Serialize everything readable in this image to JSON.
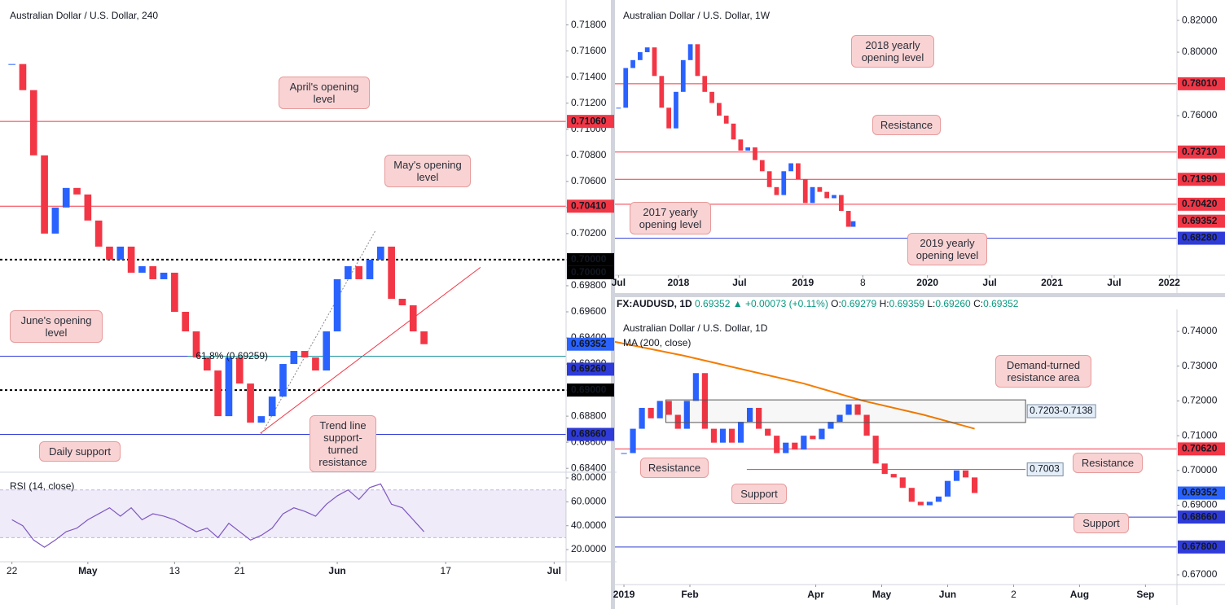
{
  "chart_data": [
    {
      "type": "candlestick",
      "title": "Australian Dollar / U.S. Dollar, 240",
      "x": [
        0,
        1,
        2,
        3,
        4,
        5,
        6,
        7,
        8,
        9,
        10,
        11,
        12,
        13,
        14,
        15,
        16,
        17,
        18,
        19,
        20,
        21,
        22,
        23,
        24,
        25,
        26,
        27,
        28,
        29,
        30,
        31,
        32,
        33,
        34,
        35,
        36,
        37,
        38
      ],
      "close": [
        0.715,
        0.713,
        0.708,
        0.702,
        0.704,
        0.7055,
        0.705,
        0.703,
        0.701,
        0.7,
        0.701,
        0.699,
        0.6995,
        0.6985,
        0.699,
        0.696,
        0.6945,
        0.6925,
        0.6915,
        0.688,
        0.6925,
        0.6905,
        0.6875,
        0.688,
        0.6895,
        0.692,
        0.693,
        0.6925,
        0.6915,
        0.6945,
        0.6985,
        0.6995,
        0.6985,
        0.7,
        0.701,
        0.697,
        0.6965,
        0.6945,
        0.69352
      ],
      "up_color": "#2962ff",
      "down_color": "#f23645",
      "xlim": [
        -1.1,
        51.1
      ],
      "ylim": [
        0.6837,
        0.7196
      ],
      "xticks": [
        {
          "value": 0,
          "label": "22"
        },
        {
          "value": 7,
          "label": "May"
        },
        {
          "value": 15,
          "label": "13"
        },
        {
          "value": 21,
          "label": "21"
        },
        {
          "value": 30,
          "label": "Jun"
        },
        {
          "value": 40,
          "label": "17"
        },
        {
          "value": 50,
          "label": "Jul"
        }
      ],
      "yticks": [
        {
          "value": 0.684,
          "label": "0.68400"
        },
        {
          "value": 0.686,
          "label": "0.68600"
        },
        {
          "value": 0.688,
          "label": "0.68800"
        },
        {
          "value": 0.69,
          "label": "0.69000"
        },
        {
          "value": 0.692,
          "label": "0.69200"
        },
        {
          "value": 0.694,
          "label": "0.69400"
        },
        {
          "value": 0.696,
          "label": "0.69600"
        },
        {
          "value": 0.698,
          "label": "0.69800"
        },
        {
          "value": 0.7,
          "label": "0.70000"
        },
        {
          "value": 0.702,
          "label": "0.70200"
        },
        {
          "value": 0.704,
          "label": "0.70400"
        },
        {
          "value": 0.706,
          "label": "0.70600"
        },
        {
          "value": 0.708,
          "label": "0.70800"
        },
        {
          "value": 0.71,
          "label": "0.71000"
        },
        {
          "value": 0.712,
          "label": "0.71200"
        },
        {
          "value": 0.714,
          "label": "0.71400"
        },
        {
          "value": 0.716,
          "label": "0.71600"
        },
        {
          "value": 0.718,
          "label": "0.71800"
        }
      ],
      "levels": [
        {
          "value": 0.7106,
          "label": "0.71060",
          "color": "#f23645",
          "style": "solid"
        },
        {
          "value": 0.7041,
          "label": "0.70410",
          "color": "#f23645",
          "style": "solid"
        },
        {
          "value": 0.7,
          "label": "0.70000",
          "color": "#000000",
          "style": "dotted"
        },
        {
          "value": 0.7,
          "label": "0.70000",
          "color": "#000000",
          "style": "none"
        },
        {
          "value": 0.69352,
          "label": "0.69352",
          "color": "#2962ff",
          "style": "none"
        },
        {
          "value": 0.6926,
          "label": "0.69260",
          "color": "#2f3bd8",
          "style": "solid"
        },
        {
          "value": 0.69,
          "label": "0.69000",
          "color": "#000000",
          "style": "dotted"
        },
        {
          "value": 0.6866,
          "label": "0.68660",
          "color": "#2f3bd8",
          "style": "solid"
        }
      ],
      "lines": [
        {
          "x": [
            22.9,
            43.2
          ],
          "y": [
            0.68668,
            0.69941
          ],
          "color": "#f23645",
          "style": "solid"
        },
        {
          "x": [
            23,
            33.5
          ],
          "y": [
            0.6866,
            0.7022
          ],
          "color": "#888888",
          "style": "dotted"
        },
        {
          "x": [
            16.2,
            51.1
          ],
          "y": [
            0.69259,
            0.69259
          ],
          "color": "#26a69a",
          "style": "solid",
          "label": "61.8% (0.69259)"
        }
      ],
      "callouts": [
        "April's opening level",
        "May's opening level",
        "June's opening level",
        "Daily support",
        "Trend line support-turned resistance"
      ],
      "rsi": {
        "name": "RSI (14, close)",
        "color": "#7e57c2",
        "values": [
          45,
          40,
          28,
          22,
          28,
          35,
          38,
          45,
          50,
          55,
          48,
          55,
          45,
          50,
          48,
          45,
          40,
          35,
          38,
          30,
          42,
          35,
          28,
          32,
          38,
          50,
          55,
          52,
          48,
          58,
          65,
          70,
          62,
          72,
          75,
          58,
          55,
          45,
          35
        ],
        "ylim": [
          9.8,
          84.8
        ],
        "band": [
          30,
          70
        ],
        "yticks": [
          {
            "value": 80,
            "label": "80.0000"
          },
          {
            "value": 60,
            "label": "60.0000"
          },
          {
            "value": 40,
            "label": "40.0000"
          },
          {
            "value": 20,
            "label": "20.0000"
          }
        ]
      }
    },
    {
      "type": "candlestick",
      "title": "Australian Dollar / U.S. Dollar, 1W",
      "x": [
        -25,
        -22,
        -19,
        -16,
        -13,
        -10,
        -7,
        -4,
        -1,
        2,
        5,
        8,
        11,
        14,
        17,
        20,
        23,
        26,
        29,
        32,
        35,
        38,
        41,
        44,
        47,
        50,
        53,
        56,
        59,
        62,
        65,
        68,
        71,
        73
      ],
      "close": [
        0.765,
        0.79,
        0.795,
        0.8,
        0.803,
        0.785,
        0.765,
        0.752,
        0.775,
        0.795,
        0.805,
        0.785,
        0.775,
        0.768,
        0.76,
        0.755,
        0.745,
        0.738,
        0.74,
        0.732,
        0.725,
        0.715,
        0.71,
        0.725,
        0.73,
        0.72,
        0.705,
        0.715,
        0.712,
        0.708,
        0.71,
        0.7,
        0.69,
        0.6935
      ],
      "up_color": "#2962ff",
      "down_color": "#f23645",
      "xlim": [
        -26.5,
        208.2
      ],
      "ylim": [
        0.6595,
        0.8303
      ],
      "xticks": [
        {
          "value": -25,
          "label": "Jul"
        },
        {
          "value": 0,
          "label": "2018"
        },
        {
          "value": 25.5,
          "label": "Jul"
        },
        {
          "value": 52,
          "label": "2019"
        },
        {
          "value": 77,
          "label": "8"
        },
        {
          "value": 104,
          "label": "2020"
        },
        {
          "value": 130,
          "label": "Jul"
        },
        {
          "value": 156,
          "label": "2021"
        },
        {
          "value": 182,
          "label": "Jul"
        },
        {
          "value": 205,
          "label": "2022"
        }
      ],
      "yticks": [
        {
          "value": 0.82,
          "label": "0.82000"
        },
        {
          "value": 0.8,
          "label": "0.80000"
        },
        {
          "value": 0.76,
          "label": "0.76000"
        }
      ],
      "levels": [
        {
          "value": 0.7801,
          "label": "0.78010",
          "color": "#f23645",
          "style": "solid"
        },
        {
          "value": 0.7371,
          "label": "0.73710",
          "color": "#f23645",
          "style": "solid"
        },
        {
          "value": 0.7199,
          "label": "0.71990",
          "color": "#f23645",
          "style": "solid"
        },
        {
          "value": 0.7042,
          "label": "0.70420",
          "color": "#f23645",
          "style": "solid"
        },
        {
          "value": 0.69352,
          "label": "0.69352",
          "color": "#f23645",
          "style": "none"
        },
        {
          "value": 0.6828,
          "label": "0.68280",
          "color": "#2f3bd8",
          "style": "solid"
        }
      ],
      "callouts": [
        "2018 yearly opening level",
        "Resistance",
        "2017 yearly opening level",
        "2019 yearly opening level"
      ]
    },
    {
      "type": "candlestick",
      "title": "Australian Dollar / U.S. Dollar, 1D",
      "legend_line": {
        "symbol": "FX:AUDUSD, 1D",
        "last": "0.69352",
        "change": "▲ +0.00073 (+0.11%)",
        "ohlc": [
          {
            "label": "O:",
            "value": "0.69279"
          },
          {
            "label": "H:",
            "value": "0.69359"
          },
          {
            "label": "L:",
            "value": "0.69260"
          },
          {
            "label": "C:",
            "value": "0.69352"
          }
        ]
      },
      "x": [
        0,
        3,
        6,
        9,
        12,
        15,
        18,
        21,
        24,
        27,
        30,
        33,
        36,
        39,
        42,
        45,
        48,
        51,
        54,
        57,
        60,
        63,
        66,
        69,
        72,
        75,
        78,
        81,
        84,
        87,
        90,
        93,
        96,
        99,
        102,
        105,
        108,
        111,
        114,
        117
      ],
      "close": [
        0.705,
        0.712,
        0.718,
        0.715,
        0.72,
        0.716,
        0.712,
        0.72,
        0.728,
        0.712,
        0.708,
        0.712,
        0.708,
        0.714,
        0.718,
        0.712,
        0.71,
        0.705,
        0.708,
        0.706,
        0.71,
        0.709,
        0.712,
        0.714,
        0.716,
        0.719,
        0.716,
        0.71,
        0.702,
        0.699,
        0.698,
        0.695,
        0.691,
        0.69,
        0.691,
        0.6925,
        0.697,
        0.7,
        0.698,
        0.69352
      ],
      "up_color": "#2962ff",
      "down_color": "#f23645",
      "xlim": [
        -3,
        184.5
      ],
      "ylim": [
        0.66719,
        0.74515
      ],
      "xticks": [
        {
          "value": 0,
          "label": "2019"
        },
        {
          "value": 22,
          "label": "Feb"
        },
        {
          "value": 64,
          "label": "Apr"
        },
        {
          "value": 86,
          "label": "May"
        },
        {
          "value": 108,
          "label": "Jun"
        },
        {
          "value": 130,
          "label": "2"
        },
        {
          "value": 152,
          "label": "Aug"
        },
        {
          "value": 174,
          "label": "Sep"
        }
      ],
      "yticks": [
        {
          "value": 0.74,
          "label": "0.74000"
        },
        {
          "value": 0.73,
          "label": "0.73000"
        },
        {
          "value": 0.72,
          "label": "0.72000"
        },
        {
          "value": 0.71,
          "label": "0.71000"
        },
        {
          "value": 0.7,
          "label": "0.70000"
        },
        {
          "value": 0.69,
          "label": "0.69000"
        },
        {
          "value": 0.67,
          "label": "0.67000"
        }
      ],
      "ma": {
        "name": "MA (200, close)",
        "color": "#f57c00",
        "x": [
          -3,
          20,
          40,
          60,
          80,
          100,
          117
        ],
        "values": [
          0.737,
          0.733,
          0.729,
          0.725,
          0.72,
          0.716,
          0.712
        ]
      },
      "zones": [
        {
          "x": [
            14,
            134
          ],
          "y": [
            0.7138,
            0.7203
          ],
          "label": "0.7203-0.7138"
        }
      ],
      "levels": [
        {
          "value": 0.7062,
          "label": "0.70620",
          "color": "#f23645",
          "style": "solid"
        },
        {
          "value": 0.7003,
          "label": "0.7003",
          "color": "#f23645",
          "style": "solid",
          "xrange": [
            41,
            134
          ],
          "tag": "box"
        },
        {
          "value": 0.69352,
          "label": "0.69352",
          "color": "#2962ff",
          "style": "none"
        },
        {
          "value": 0.6866,
          "label": "0.68660",
          "color": "#2f3bd8",
          "style": "solid"
        },
        {
          "value": 0.678,
          "label": "0.67800",
          "color": "#2f3bd8",
          "style": "solid"
        }
      ],
      "callouts": [
        "Demand-turned resistance area",
        "Resistance",
        "Resistance",
        "Support",
        "Support"
      ]
    }
  ]
}
